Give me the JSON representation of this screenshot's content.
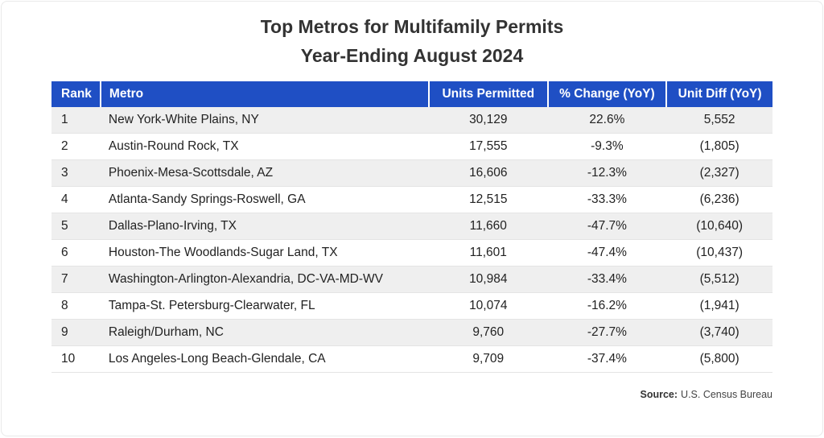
{
  "title": {
    "line1": "Top Metros for Multifamily Permits",
    "line2": "Year-Ending August 2024"
  },
  "source": {
    "label": "Source:",
    "text": "U.S. Census Bureau"
  },
  "colors": {
    "header_bg": "#1f4fc4",
    "header_text": "#ffffff",
    "row_alt": "#efefef"
  },
  "chart_data": {
    "type": "table",
    "title": "Top Metros for Multifamily Permits Year-Ending August 2024",
    "columns": [
      "Rank",
      "Metro",
      "Units Permitted",
      "% Change (YoY)",
      "Unit Diff (YoY)"
    ],
    "rows": [
      {
        "rank": "1",
        "metro": "New York-White Plains, NY",
        "units": "30,129",
        "pct_change": "22.6%",
        "unit_diff": "5,552"
      },
      {
        "rank": "2",
        "metro": "Austin-Round Rock, TX",
        "units": "17,555",
        "pct_change": "-9.3%",
        "unit_diff": "(1,805)"
      },
      {
        "rank": "3",
        "metro": "Phoenix-Mesa-Scottsdale, AZ",
        "units": "16,606",
        "pct_change": "-12.3%",
        "unit_diff": "(2,327)"
      },
      {
        "rank": "4",
        "metro": "Atlanta-Sandy Springs-Roswell, GA",
        "units": "12,515",
        "pct_change": "-33.3%",
        "unit_diff": "(6,236)"
      },
      {
        "rank": "5",
        "metro": "Dallas-Plano-Irving, TX",
        "units": "11,660",
        "pct_change": "-47.7%",
        "unit_diff": "(10,640)"
      },
      {
        "rank": "6",
        "metro": "Houston-The Woodlands-Sugar Land, TX",
        "units": "11,601",
        "pct_change": "-47.4%",
        "unit_diff": "(10,437)"
      },
      {
        "rank": "7",
        "metro": "Washington-Arlington-Alexandria, DC-VA-MD-WV",
        "units": "10,984",
        "pct_change": "-33.4%",
        "unit_diff": "(5,512)"
      },
      {
        "rank": "8",
        "metro": "Tampa-St. Petersburg-Clearwater, FL",
        "units": "10,074",
        "pct_change": "-16.2%",
        "unit_diff": "(1,941)"
      },
      {
        "rank": "9",
        "metro": "Raleigh/Durham, NC",
        "units": "9,760",
        "pct_change": "-27.7%",
        "unit_diff": "(3,740)"
      },
      {
        "rank": "10",
        "metro": "Los Angeles-Long Beach-Glendale, CA",
        "units": "9,709",
        "pct_change": "-37.4%",
        "unit_diff": "(5,800)"
      }
    ]
  }
}
